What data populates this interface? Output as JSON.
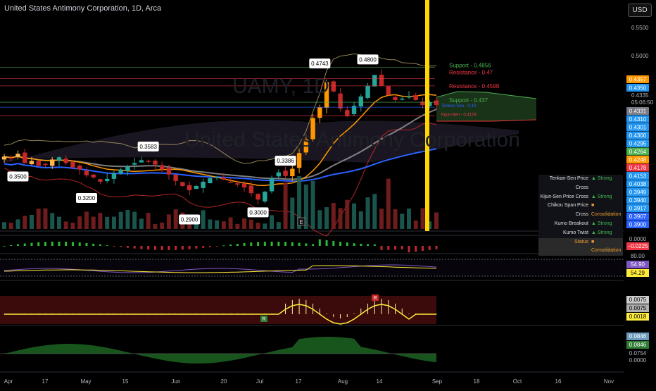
{
  "header": {
    "title": "United States Antimony Corporation, 1D, Arca",
    "currency": "USD"
  },
  "watermark": {
    "symbol": "UAMY, 1D",
    "name": "United States Antimony Corporation"
  },
  "chart_data": {
    "type": "line",
    "title": "United States Antimony Corporation, 1D, Arca",
    "x": [
      "Mar 28",
      "Mar 31",
      "Apr 3",
      "Apr 5",
      "Apr 10",
      "Apr 12",
      "Apr 14",
      "Apr 17",
      "Apr 19",
      "Apr 21",
      "Apr 24",
      "Apr 26",
      "Apr 28",
      "May 1",
      "May 3",
      "May 5",
      "May 8",
      "May 10",
      "May 12",
      "May 15",
      "May 17",
      "May 19",
      "May 22",
      "May 24",
      "May 26",
      "May 30",
      "Jun 1",
      "Jun 5",
      "Jun 7",
      "Jun 9",
      "Jun 12",
      "Jun 14",
      "Jun 16",
      "Jun 20",
      "Jun 22",
      "Jun 26",
      "Jun 28",
      "Jun 30",
      "Jul 3",
      "Jul 6",
      "Jul 10",
      "Jul 12",
      "Jul 14",
      "Jul 17",
      "Jul 19",
      "Jul 21",
      "Jul 24",
      "Jul 26",
      "Jul 28",
      "Jul 31",
      "Aug 2",
      "Aug 4",
      "Aug 7",
      "Aug 9",
      "Aug 11",
      "Aug 14",
      "Aug 16",
      "Aug 18",
      "Aug 21",
      "Aug 23",
      "Aug 25",
      "Aug 28",
      "Aug 30",
      "Sep 1"
    ],
    "series": [],
    "close": [
      0.361,
      0.358,
      0.365,
      0.352,
      0.355,
      0.348,
      0.35,
      0.357,
      0.36,
      0.352,
      0.346,
      0.343,
      0.335,
      0.332,
      0.326,
      0.33,
      0.338,
      0.343,
      0.347,
      0.352,
      0.356,
      0.354,
      0.35,
      0.343,
      0.336,
      0.327,
      0.32,
      0.314,
      0.32,
      0.326,
      0.331,
      0.333,
      0.329,
      0.326,
      0.322,
      0.318,
      0.31,
      0.301,
      0.312,
      0.331,
      0.339,
      0.334,
      0.344,
      0.366,
      0.385,
      0.415,
      0.43,
      0.465,
      0.452,
      0.428,
      0.418,
      0.432,
      0.445,
      0.46,
      0.475,
      0.46,
      0.447,
      0.44,
      0.442,
      0.445,
      0.44,
      0.433,
      0.437,
      0.433
    ],
    "annotations": [
      {
        "label": "0.3500",
        "value": 0.35,
        "date": "Apr 3",
        "type": "low"
      },
      {
        "label": "0.3200",
        "value": 0.32,
        "date": "Apr 28",
        "type": "low"
      },
      {
        "label": "0.3583",
        "value": 0.3583,
        "date": "May 19",
        "type": "high"
      },
      {
        "label": "0.2900",
        "value": 0.29,
        "date": "Jun 5",
        "type": "low"
      },
      {
        "label": "0.3386",
        "value": 0.3386,
        "date": "Jul 12",
        "type": "high"
      },
      {
        "label": "0.3000",
        "value": 0.3,
        "date": "Jun 30",
        "type": "low"
      },
      {
        "label": "0.4743",
        "value": 0.4743,
        "date": "Jul 24",
        "type": "high"
      },
      {
        "label": "0.4800",
        "value": 0.48,
        "date": "Aug 9",
        "type": "high"
      }
    ],
    "levels": [
      {
        "label": "Support - 0.4856",
        "value": 0.4856,
        "color": "#4caf50"
      },
      {
        "label": "Resistance - 0.47",
        "value": 0.47,
        "color": "#f23645"
      },
      {
        "label": "Resistance - 0.4598",
        "value": 0.4598,
        "color": "#f23645"
      },
      {
        "label": "Support - 0.437",
        "value": 0.437,
        "color": "#4caf50"
      },
      {
        "label": "Tenkan-Sen - 0.43",
        "value": 0.43,
        "color": "#2962ff"
      },
      {
        "label": "Kijun-Sen - 0.4178",
        "value": 0.4178,
        "color": "#f23645"
      }
    ],
    "y_ticks": [
      "0.5500",
      "0.5000",
      "0.4335"
    ],
    "countdown": "05:06:50",
    "x_ticks": [
      "Apr",
      "17",
      "May",
      "15",
      "Jun",
      "20",
      "Jul",
      "17",
      "Aug",
      "14",
      "Sep",
      "18",
      "Oct",
      "16",
      "Nov"
    ],
    "ylim": [
      0.26,
      0.56
    ],
    "price_tags": [
      {
        "label": "0.4357",
        "color": "#ff9800"
      },
      {
        "label": "0.4350",
        "color": "#2196f3"
      },
      {
        "label": "0.4331",
        "color": "#787b86"
      },
      {
        "label": "0.4310",
        "color": "#2196f3"
      },
      {
        "label": "0.4301",
        "color": "#2196f3"
      },
      {
        "label": "0.4300",
        "color": "#2196f3"
      },
      {
        "label": "0.4295",
        "color": "#2196f3"
      },
      {
        "label": "0.4264",
        "color": "#4caf50"
      },
      {
        "label": "0.4248",
        "color": "#ff9800"
      },
      {
        "label": "0.4178",
        "color": "#f23645"
      },
      {
        "label": "0.4153",
        "color": "#2196f3"
      },
      {
        "label": "0.4038",
        "color": "#2196f3"
      },
      {
        "label": "0.3949",
        "color": "#2196f3"
      },
      {
        "label": "0.3940",
        "color": "#2196f3"
      },
      {
        "label": "0.3917",
        "color": "#2196f3"
      },
      {
        "label": "0.3907",
        "color": "#2962ff"
      },
      {
        "label": "0.3900",
        "color": "#2962ff"
      }
    ],
    "panes": [
      {
        "name": "oscillator",
        "tags": [
          {
            "label": "0.0000",
            "color": ""
          },
          {
            "label": "−0.0225",
            "color": "#f23645"
          }
        ]
      },
      {
        "name": "rsi",
        "tags": [
          {
            "label": "80.00",
            "color": ""
          },
          {
            "label": "54.90",
            "color": "#7e57c2"
          },
          {
            "label": "54.29",
            "color": "#ffeb3b"
          }
        ]
      },
      {
        "name": "trend",
        "tags": [
          {
            "label": "0.0075",
            "color": "#cccccc"
          },
          {
            "label": "0.0075",
            "color": "#b0b0b0"
          },
          {
            "label": "0.0018",
            "color": "#ffeb3b"
          }
        ]
      },
      {
        "name": "momentum",
        "tags": [
          {
            "label": "0.0846",
            "color": "#6a9bbd"
          },
          {
            "label": "0.0846",
            "color": "#2e7d32"
          },
          {
            "label": "0.0754",
            "color": ""
          },
          {
            "label": "0.0000",
            "color": ""
          }
        ]
      }
    ],
    "markers": {
      "e": "E",
      "r1": "R",
      "r2": "R"
    }
  },
  "status_table": [
    {
      "label": "Tenkan-Sen Price Cross",
      "value": "▲ Strong",
      "tone": "green"
    },
    {
      "label": "Kijun-Sen Price Cross",
      "value": "▲ Strong",
      "tone": "green"
    },
    {
      "label": "Chikou Span Price Cross",
      "value": "■ Consolidation",
      "tone": "orange"
    },
    {
      "label": "Kumo Breakout",
      "value": "▲ Strong",
      "tone": "green"
    },
    {
      "label": "Kumo Twist",
      "value": "▲ Strong",
      "tone": "green"
    },
    {
      "label": "Status",
      "value": "■ Consolidation",
      "tone": "orange"
    }
  ]
}
